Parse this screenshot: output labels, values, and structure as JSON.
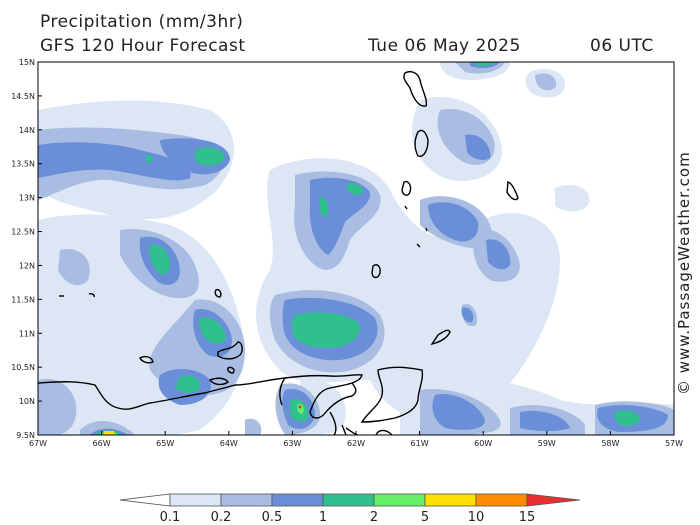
{
  "header": {
    "title": "Precipitation (mm/3hr)",
    "subtitle": "GFS 120 Hour Forecast",
    "date": "Tue 06 May 2025",
    "time": "06 UTC"
  },
  "map": {
    "lat_labels": [
      "15N",
      "14.5N",
      "14N",
      "13.5N",
      "13N",
      "12.5N",
      "12N",
      "11.5N",
      "11N",
      "10.5N",
      "10N",
      "9.5N"
    ],
    "lon_labels": [
      "67W",
      "66W",
      "65W",
      "64W",
      "63W",
      "62W",
      "61W",
      "60W",
      "59W",
      "58W",
      "57W"
    ],
    "extent": {
      "lon": [
        -67,
        -57
      ],
      "lat": [
        9.5,
        15
      ]
    }
  },
  "colorbar": {
    "labels": [
      "0.1",
      "0.2",
      "0.5",
      "1",
      "2",
      "5",
      "10",
      "15"
    ],
    "colors": [
      "#ffffff",
      "#dce6f5",
      "#a9bde3",
      "#6a8fd8",
      "#2fc08e",
      "#66ee66",
      "#ffe000",
      "#ff8c00",
      "#e83030"
    ]
  },
  "credit": "© www.PassageWeather.com"
}
